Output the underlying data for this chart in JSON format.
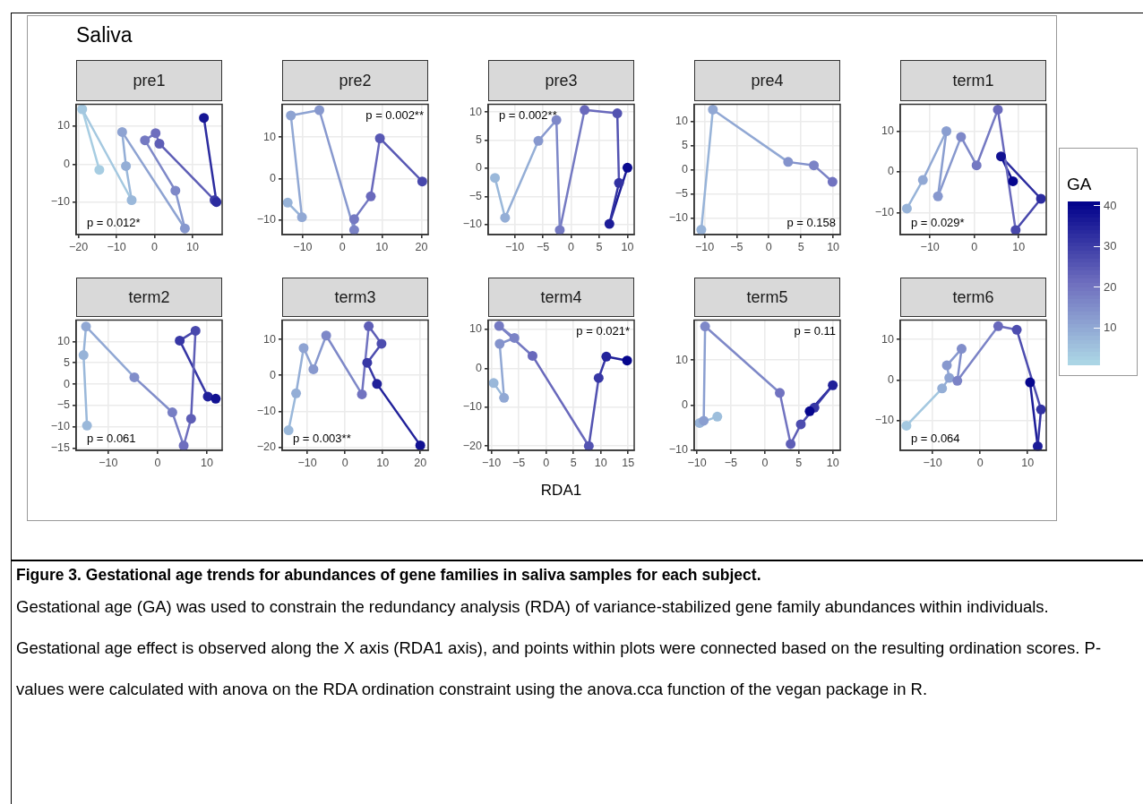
{
  "chart_data": [
    {
      "type": "line",
      "title": "pre1",
      "xlim": [
        -20.6,
        17.8
      ],
      "ylim": [
        -18.6,
        15.8
      ],
      "xticks": [
        -20,
        -10,
        0,
        10
      ],
      "yticks": [
        -10,
        0,
        10
      ],
      "grid": true,
      "annotations": [
        "p = 0.012*"
      ],
      "series": [
        {
          "type": "line",
          "x": [
            -14.5,
            -19
          ],
          "values": [
            -1.5,
            14.5
          ],
          "color": "#a7cde2"
        },
        {
          "type": "line",
          "x": [
            -19,
            -6
          ],
          "values": [
            14.5,
            -9.5
          ],
          "color": "#a4c8e0"
        },
        {
          "type": "line",
          "x": [
            -6,
            -7.5
          ],
          "values": [
            -9.5,
            -0.5
          ],
          "color": "#9ab8da"
        },
        {
          "type": "line",
          "x": [
            -7.5,
            -8.5
          ],
          "values": [
            -0.5,
            8.5
          ],
          "color": "#94aed6"
        },
        {
          "type": "line",
          "x": [
            -8.5,
            8
          ],
          "values": [
            8.5,
            -17
          ],
          "color": "#8ea3d2"
        },
        {
          "type": "line",
          "x": [
            8,
            5.5
          ],
          "values": [
            -17,
            -7
          ],
          "color": "#8798ce"
        },
        {
          "type": "line",
          "x": [
            5.5,
            -2.5
          ],
          "values": [
            -7,
            6.3
          ],
          "color": "#7e88c8"
        },
        {
          "type": "line",
          "x": [
            -2.5,
            0.3
          ],
          "values": [
            6.3,
            8.2
          ],
          "color": "#7479c2"
        },
        {
          "type": "line",
          "x": [
            0.3,
            1.3
          ],
          "values": [
            8.2,
            5.4
          ],
          "color": "#6e6ebe"
        },
        {
          "type": "line",
          "x": [
            1.3,
            15.8
          ],
          "values": [
            5.4,
            -9.5
          ],
          "color": "#5e5eb6"
        },
        {
          "type": "line",
          "x": [
            16.3,
            13
          ],
          "values": [
            -10,
            12.2
          ],
          "color": "#2c2c9f"
        },
        {
          "type": "scatter",
          "marker": "circle",
          "x": [
            -14.5,
            -19,
            -6,
            -7.5,
            -8.5,
            8,
            5.5,
            -2.5,
            0.3,
            1.3,
            15.8,
            16.3,
            13
          ],
          "values": [
            -1.5,
            14.5,
            -9.5,
            -0.5,
            8.5,
            -17,
            -7,
            6.3,
            8.2,
            5.4,
            -9.5,
            -10,
            12.2
          ],
          "colors": [
            "#a7cde2",
            "#a4c8e0",
            "#9ab8da",
            "#94aed6",
            "#8ea3d2",
            "#8798ce",
            "#7e88c8",
            "#7479c2",
            "#6e6ebe",
            "#5e5eb6",
            "#3d3da7",
            "#2c2c9f",
            "#161695"
          ]
        }
      ]
    },
    {
      "type": "line",
      "title": "pre2",
      "xlim": [
        -15.2,
        21.7
      ],
      "ylim": [
        -13.5,
        17.9
      ],
      "xticks": [
        -10,
        0,
        10,
        20
      ],
      "yticks": [
        -10,
        0,
        10
      ],
      "grid": true,
      "annotations": [
        "p = 0.002**"
      ],
      "series": [
        {
          "type": "line",
          "x": [
            -13.8,
            -10.2
          ],
          "values": [
            -5.8,
            -9.3
          ],
          "color": "#97b3d8"
        },
        {
          "type": "line",
          "x": [
            -10.2,
            -13
          ],
          "values": [
            -9.3,
            15.2
          ],
          "color": "#91a8d4"
        },
        {
          "type": "line",
          "x": [
            -13,
            -5.8
          ],
          "values": [
            15.2,
            16.5
          ],
          "color": "#8ea3d2"
        },
        {
          "type": "line",
          "x": [
            -5.8,
            3
          ],
          "values": [
            16.5,
            -12.4
          ],
          "color": "#8798ce"
        },
        {
          "type": "line",
          "x": [
            3,
            3
          ],
          "values": [
            -12.4,
            -9.8
          ],
          "color": "#7b83c6"
        },
        {
          "type": "line",
          "x": [
            3,
            7.2
          ],
          "values": [
            -9.8,
            -4.3
          ],
          "color": "#7479c2"
        },
        {
          "type": "line",
          "x": [
            7.2,
            9.5
          ],
          "values": [
            -4.3,
            9.7
          ],
          "color": "#6969bc"
        },
        {
          "type": "line",
          "x": [
            9.5,
            20.2
          ],
          "values": [
            9.7,
            -0.7
          ],
          "color": "#5858b4"
        },
        {
          "type": "scatter",
          "marker": "circle",
          "x": [
            -13.8,
            -10.2,
            -13,
            -5.8,
            3,
            3,
            7.2,
            9.5,
            20.2
          ],
          "values": [
            -5.8,
            -9.3,
            15.2,
            16.5,
            -12.4,
            -9.8,
            -4.3,
            9.7,
            -0.7
          ],
          "colors": [
            "#97b3d8",
            "#91a8d4",
            "#8ea3d2",
            "#8798ce",
            "#7b83c6",
            "#7479c2",
            "#6969bc",
            "#5858b4",
            "#4848ac"
          ]
        }
      ]
    },
    {
      "type": "line",
      "title": "pre3",
      "xlim": [
        -14.7,
        11.2
      ],
      "ylim": [
        -11.8,
        11.4
      ],
      "xticks": [
        -10,
        -5,
        0,
        5,
        10
      ],
      "yticks": [
        -10,
        -5,
        0,
        5,
        10
      ],
      "grid": true,
      "annotations": [
        "p = 0.002**"
      ],
      "series": [
        {
          "type": "line",
          "x": [
            -13.5,
            -11.7
          ],
          "values": [
            -1.7,
            -8.8
          ],
          "color": "#9ab8da"
        },
        {
          "type": "line",
          "x": [
            -11.7,
            -5.8
          ],
          "values": [
            -8.8,
            4.9
          ],
          "color": "#94aed6"
        },
        {
          "type": "line",
          "x": [
            -5.8,
            -2.6
          ],
          "values": [
            4.9,
            8.6
          ],
          "color": "#8798ce"
        },
        {
          "type": "line",
          "x": [
            -2.6,
            -2
          ],
          "values": [
            8.6,
            -11
          ],
          "color": "#7e88c8"
        },
        {
          "type": "line",
          "x": [
            -2,
            2.4
          ],
          "values": [
            -11,
            10.4
          ],
          "color": "#7479c2"
        },
        {
          "type": "line",
          "x": [
            2.4,
            8.2
          ],
          "values": [
            10.4,
            9.8
          ],
          "color": "#6969bc"
        },
        {
          "type": "line",
          "x": [
            8.2,
            8.5
          ],
          "values": [
            9.8,
            -2.6
          ],
          "color": "#5353b1"
        },
        {
          "type": "line",
          "x": [
            8.5,
            6.8
          ],
          "values": [
            -2.6,
            -9.9
          ],
          "color": "#3232a2"
        },
        {
          "type": "line",
          "x": [
            6.8,
            10
          ],
          "values": [
            -9.9,
            0.1
          ],
          "color": "#1c1c98"
        },
        {
          "type": "scatter",
          "marker": "circle",
          "x": [
            -13.5,
            -11.7,
            -5.8,
            -2.6,
            -2,
            2.4,
            8.2,
            8.5,
            6.8,
            10
          ],
          "values": [
            -1.7,
            -8.8,
            4.9,
            8.6,
            -11,
            10.4,
            9.8,
            -2.6,
            -9.9,
            0.1
          ],
          "colors": [
            "#9ab8da",
            "#94aed6",
            "#8798ce",
            "#7e88c8",
            "#7479c2",
            "#6969bc",
            "#5353b1",
            "#3232a2",
            "#1c1c98",
            "#0b0b90"
          ]
        }
      ]
    },
    {
      "type": "line",
      "title": "pre4",
      "xlim": [
        -11.6,
        11.1
      ],
      "ylim": [
        -13.4,
        13.5
      ],
      "xticks": [
        -10,
        -5,
        0,
        5,
        10
      ],
      "yticks": [
        -10,
        -5,
        0,
        5,
        10
      ],
      "grid": true,
      "annotations": [
        "p = 0.158"
      ],
      "series": [
        {
          "type": "line",
          "x": [
            -10.5,
            -8.7
          ],
          "values": [
            -12.4,
            12.4
          ],
          "color": "#97b3d8"
        },
        {
          "type": "line",
          "x": [
            -8.7,
            3
          ],
          "values": [
            12.4,
            1.6
          ],
          "color": "#91a8d4"
        },
        {
          "type": "line",
          "x": [
            3,
            7
          ],
          "values": [
            1.6,
            0.9
          ],
          "color": "#8493cc"
        },
        {
          "type": "line",
          "x": [
            7,
            9.9
          ],
          "values": [
            0.9,
            -2.5
          ],
          "color": "#7b83c6"
        },
        {
          "type": "scatter",
          "marker": "circle",
          "x": [
            -10.5,
            -8.7,
            3,
            7,
            9.9
          ],
          "values": [
            -12.4,
            12.4,
            1.6,
            0.9,
            -2.5
          ],
          "colors": [
            "#97b3d8",
            "#91a8d4",
            "#8493cc",
            "#7b83c6",
            "#7173c0"
          ]
        }
      ]
    },
    {
      "type": "line",
      "title": "term1",
      "clim": [
        1,
        41
      ],
      "cticks": [
        10,
        20,
        30,
        40
      ],
      "clabel": "GA",
      "xlim": [
        -16.7,
        16.2
      ],
      "ylim": [
        -15.4,
        16.6
      ],
      "xticks": [
        -10,
        0,
        10
      ],
      "yticks": [
        -10,
        0,
        10
      ],
      "grid": true,
      "annotations": [
        "p = 0.029*"
      ],
      "series": [
        {
          "type": "line",
          "x": [
            -15.2,
            -11.6
          ],
          "values": [
            -9,
            -2
          ],
          "color": "#97b3d8"
        },
        {
          "type": "line",
          "x": [
            -11.6,
            -6.3
          ],
          "values": [
            -2,
            10
          ],
          "color": "#91a8d4"
        },
        {
          "type": "line",
          "x": [
            -6.3,
            -8.2
          ],
          "values": [
            10,
            -6
          ],
          "color": "#8a9ed0"
        },
        {
          "type": "line",
          "x": [
            -8.2,
            -3
          ],
          "values": [
            -6,
            8.6
          ],
          "color": "#8798ce"
        },
        {
          "type": "line",
          "x": [
            -3,
            0.5
          ],
          "values": [
            8.6,
            1.6
          ],
          "color": "#7e88c8"
        },
        {
          "type": "line",
          "x": [
            0.5,
            5.3
          ],
          "values": [
            1.6,
            15.3
          ],
          "color": "#7479c2"
        },
        {
          "type": "line",
          "x": [
            5.3,
            9.3
          ],
          "values": [
            15.3,
            -14.3
          ],
          "color": "#6969bc"
        },
        {
          "type": "line",
          "x": [
            9.3,
            15
          ],
          "values": [
            -14.3,
            -6.6
          ],
          "color": "#4848ac"
        },
        {
          "type": "line",
          "x": [
            15,
            6
          ],
          "values": [
            -6.6,
            3.8
          ],
          "color": "#2c2c9f"
        },
        {
          "type": "line",
          "x": [
            6,
            8.7
          ],
          "values": [
            3.8,
            -2.3
          ],
          "color": "#111192"
        },
        {
          "type": "scatter",
          "marker": "circle",
          "x": [
            -15.2,
            -11.6,
            -6.3,
            -8.2,
            -3,
            0.5,
            5.3,
            9.3,
            15,
            6,
            8.7
          ],
          "values": [
            -9,
            -2,
            10,
            -6,
            8.6,
            1.6,
            15.3,
            -14.3,
            -6.6,
            3.8,
            -2.3
          ],
          "colors": [
            "#97b3d8",
            "#91a8d4",
            "#8a9ed0",
            "#8798ce",
            "#7e88c8",
            "#7479c2",
            "#6969bc",
            "#4848ac",
            "#2c2c9f",
            "#111192",
            "#06068d"
          ]
        }
      ]
    },
    {
      "type": "line",
      "title": "term2",
      "xlim": [
        -16.5,
        13.1
      ],
      "ylim": [
        -15.5,
        15
      ],
      "xticks": [
        -10,
        0,
        10
      ],
      "yticks": [
        -15,
        -10,
        -5,
        0,
        5,
        10
      ],
      "grid": true,
      "annotations": [
        "p = 0.061"
      ],
      "series": [
        {
          "type": "line",
          "x": [
            -14.3,
            -15
          ],
          "values": [
            -9.7,
            6.8
          ],
          "color": "#9ab8da"
        },
        {
          "type": "line",
          "x": [
            -15,
            -14.5
          ],
          "values": [
            6.8,
            13.5
          ],
          "color": "#97b3d8"
        },
        {
          "type": "line",
          "x": [
            -14.5,
            -4.7
          ],
          "values": [
            13.5,
            1.6
          ],
          "color": "#91a8d4"
        },
        {
          "type": "line",
          "x": [
            -4.7,
            3
          ],
          "values": [
            1.6,
            -6.6
          ],
          "color": "#818eca"
        },
        {
          "type": "line",
          "x": [
            3,
            5.3
          ],
          "values": [
            -6.6,
            -14.4
          ],
          "color": "#777ec4"
        },
        {
          "type": "line",
          "x": [
            5.3,
            6.8
          ],
          "values": [
            -14.4,
            -8.1
          ],
          "color": "#6e6ebe"
        },
        {
          "type": "line",
          "x": [
            6.8,
            7.7
          ],
          "values": [
            -8.1,
            12.5
          ],
          "color": "#5e5eb6"
        },
        {
          "type": "line",
          "x": [
            7.7,
            4.5
          ],
          "values": [
            12.5,
            10.2
          ],
          "color": "#4848ac"
        },
        {
          "type": "line",
          "x": [
            4.5,
            10.2
          ],
          "values": [
            10.2,
            -2.9
          ],
          "color": "#3737a5"
        },
        {
          "type": "scatter",
          "marker": "circle",
          "x": [
            -14.3,
            -15,
            -14.5,
            -4.7,
            3,
            5.3,
            6.8,
            7.7,
            4.5,
            10.2,
            11.8
          ],
          "values": [
            -9.7,
            6.8,
            13.5,
            1.6,
            -6.6,
            -14.4,
            -8.1,
            12.5,
            10.2,
            -2.9,
            -3.4
          ],
          "colors": [
            "#9ab8da",
            "#97b3d8",
            "#91a8d4",
            "#818eca",
            "#777ec4",
            "#6e6ebe",
            "#5e5eb6",
            "#4848ac",
            "#3737a5",
            "#21219a",
            "#111192"
          ]
        }
      ]
    },
    {
      "type": "line",
      "title": "term3",
      "xlim": [
        -16.7,
        22.1
      ],
      "ylim": [
        -20.9,
        15.4
      ],
      "xticks": [
        -10,
        0,
        10,
        20
      ],
      "yticks": [
        -20,
        -10,
        0,
        10
      ],
      "grid": true,
      "annotations": [
        "p = 0.003**"
      ],
      "series": [
        {
          "type": "line",
          "x": [
            -15,
            -13
          ],
          "values": [
            -15.3,
            -5
          ],
          "color": "#9ab8da"
        },
        {
          "type": "line",
          "x": [
            -13,
            -11
          ],
          "values": [
            -5,
            7.6
          ],
          "color": "#94aed6"
        },
        {
          "type": "line",
          "x": [
            -11,
            -8.4
          ],
          "values": [
            7.6,
            1.7
          ],
          "color": "#8ea3d2"
        },
        {
          "type": "line",
          "x": [
            -8.4,
            -5
          ],
          "values": [
            1.7,
            11.1
          ],
          "color": "#8798ce"
        },
        {
          "type": "line",
          "x": [
            -5,
            4.5
          ],
          "values": [
            11.1,
            -5.3
          ],
          "color": "#7e88c8"
        },
        {
          "type": "line",
          "x": [
            4.5,
            6.3
          ],
          "values": [
            -5.3,
            13.7
          ],
          "color": "#7173c0"
        },
        {
          "type": "line",
          "x": [
            6.3,
            9.7
          ],
          "values": [
            13.7,
            8.8
          ],
          "color": "#5e5eb6"
        },
        {
          "type": "line",
          "x": [
            9.7,
            5.9
          ],
          "values": [
            8.8,
            3.5
          ],
          "color": "#4d4daf"
        },
        {
          "type": "line",
          "x": [
            5.9,
            8.5
          ],
          "values": [
            3.5,
            -2.4
          ],
          "color": "#3737a5"
        },
        {
          "type": "line",
          "x": [
            8.5,
            20
          ],
          "values": [
            -2.4,
            -19.5
          ],
          "color": "#21219a"
        },
        {
          "type": "scatter",
          "marker": "circle",
          "x": [
            -15,
            -13,
            -11,
            -8.4,
            -5,
            4.5,
            6.3,
            9.7,
            5.9,
            8.5,
            20
          ],
          "values": [
            -15.3,
            -5,
            7.6,
            1.7,
            11.1,
            -5.3,
            13.7,
            8.8,
            3.5,
            -2.4,
            -19.5
          ],
          "colors": [
            "#9ab8da",
            "#94aed6",
            "#8ea3d2",
            "#8798ce",
            "#7e88c8",
            "#7173c0",
            "#5e5eb6",
            "#4d4daf",
            "#3737a5",
            "#21219a",
            "#111192"
          ]
        }
      ]
    },
    {
      "type": "line",
      "title": "term4",
      "xlabel": "RDA1",
      "xlim": [
        -10.6,
        16.1
      ],
      "ylim": [
        -21.1,
        12.4
      ],
      "xticks": [
        -10,
        -5,
        0,
        5,
        10,
        15
      ],
      "yticks": [
        -20,
        -10,
        0,
        10
      ],
      "grid": true,
      "annotations": [
        "p = 0.021*"
      ],
      "series": [
        {
          "type": "line",
          "x": [
            -9.6,
            -7.7
          ],
          "values": [
            -3.8,
            -7.6
          ],
          "color": "#9ab8da"
        },
        {
          "type": "line",
          "x": [
            -7.7,
            -8.5
          ],
          "values": [
            -7.6,
            6.3
          ],
          "color": "#91a8d4"
        },
        {
          "type": "line",
          "x": [
            -8.5,
            -5.8
          ],
          "values": [
            6.3,
            7.8
          ],
          "color": "#8493cc"
        },
        {
          "type": "line",
          "x": [
            -5.8,
            -8.6
          ],
          "values": [
            7.8,
            10.9
          ],
          "color": "#7b83c6"
        },
        {
          "type": "line",
          "x": [
            -8.6,
            -2.5
          ],
          "values": [
            10.9,
            3.2
          ],
          "color": "#7479c2"
        },
        {
          "type": "line",
          "x": [
            -2.5,
            7.8
          ],
          "values": [
            3.2,
            -20
          ],
          "color": "#6969bc"
        },
        {
          "type": "line",
          "x": [
            7.8,
            9.6
          ],
          "values": [
            -20,
            -2.5
          ],
          "color": "#5353b1"
        },
        {
          "type": "line",
          "x": [
            9.6,
            11
          ],
          "values": [
            -2.5,
            3
          ],
          "color": "#3737a5"
        },
        {
          "type": "line",
          "x": [
            11,
            14.8
          ],
          "values": [
            3,
            2
          ],
          "color": "#21219a"
        },
        {
          "type": "scatter",
          "marker": "circle",
          "x": [
            -9.6,
            -7.7,
            -8.5,
            -5.8,
            -8.6,
            -2.5,
            7.8,
            9.6,
            11,
            14.8
          ],
          "values": [
            -3.8,
            -7.6,
            6.3,
            7.8,
            10.9,
            3.2,
            -20,
            -2.5,
            3,
            2
          ],
          "colors": [
            "#9ab8da",
            "#91a8d4",
            "#8493cc",
            "#7b83c6",
            "#7479c2",
            "#6969bc",
            "#5353b1",
            "#3737a5",
            "#21219a",
            "#06068d"
          ]
        }
      ]
    },
    {
      "type": "line",
      "title": "term5",
      "xlim": [
        -10.4,
        11.1
      ],
      "ylim": [
        -10.1,
        18.9
      ],
      "xticks": [
        -10,
        -5,
        0,
        5,
        10
      ],
      "yticks": [
        -10,
        0,
        10
      ],
      "grid": true,
      "annotations": [
        "p = 0.11"
      ],
      "series": [
        {
          "type": "line",
          "x": [
            -7,
            -9.6
          ],
          "values": [
            -2.6,
            -4
          ],
          "color": "#9dbedc"
        },
        {
          "type": "line",
          "x": [
            -9,
            -8.8
          ],
          "values": [
            -3.5,
            17.5
          ],
          "color": "#8a9ed0"
        },
        {
          "type": "line",
          "x": [
            -8.8,
            2.2
          ],
          "values": [
            17.5,
            2.7
          ],
          "color": "#7e88c8"
        },
        {
          "type": "line",
          "x": [
            2.2,
            3.8
          ],
          "values": [
            2.7,
            -8.7
          ],
          "color": "#7173c0"
        },
        {
          "type": "line",
          "x": [
            3.8,
            5.3
          ],
          "values": [
            -8.7,
            -4.3
          ],
          "color": "#5e5eb6"
        },
        {
          "type": "line",
          "x": [
            5.3,
            7.3
          ],
          "values": [
            -4.3,
            -0.6
          ],
          "color": "#4d4daf"
        },
        {
          "type": "line",
          "x": [
            7.3,
            10
          ],
          "values": [
            -0.6,
            4.4
          ],
          "color": "#3737a5"
        },
        {
          "type": "line",
          "x": [
            10,
            6.6
          ],
          "values": [
            4.4,
            -1.4
          ],
          "color": "#21219a"
        },
        {
          "type": "scatter",
          "marker": "circle",
          "x": [
            -7,
            -9.6,
            -9,
            -8.8,
            2.2,
            3.8,
            5.3,
            7.3,
            10,
            6.6
          ],
          "values": [
            -2.6,
            -4,
            -3.5,
            17.5,
            2.7,
            -8.7,
            -4.3,
            -0.6,
            4.4,
            -1.4
          ],
          "colors": [
            "#9dbedc",
            "#97b3d8",
            "#8a9ed0",
            "#7e88c8",
            "#7173c0",
            "#5e5eb6",
            "#4d4daf",
            "#3737a5",
            "#21219a",
            "#06068d"
          ]
        }
      ]
    },
    {
      "type": "line",
      "title": "term6",
      "xlim": [
        -16.8,
        13.9
      ],
      "ylim": [
        -17.4,
        14.8
      ],
      "xticks": [
        -10,
        0,
        10
      ],
      "yticks": [
        -10,
        0,
        10
      ],
      "grid": true,
      "annotations": [
        "p = 0.064"
      ],
      "series": [
        {
          "type": "line",
          "x": [
            -15.5,
            -8
          ],
          "values": [
            -11.3,
            -2.1
          ],
          "color": "#a4c8e0"
        },
        {
          "type": "line",
          "x": [
            -8,
            -6.5
          ],
          "values": [
            -2.1,
            0.5
          ],
          "color": "#94aed6"
        },
        {
          "type": "line",
          "x": [
            -6.5,
            -7
          ],
          "values": [
            0.5,
            3.6
          ],
          "color": "#8ea3d2"
        },
        {
          "type": "line",
          "x": [
            -7,
            -3.9
          ],
          "values": [
            3.6,
            7.7
          ],
          "color": "#8798ce"
        },
        {
          "type": "line",
          "x": [
            -3.9,
            -4.8
          ],
          "values": [
            7.7,
            -0.2
          ],
          "color": "#818eca"
        },
        {
          "type": "line",
          "x": [
            -4.8,
            3.8
          ],
          "values": [
            -0.2,
            13.3
          ],
          "color": "#7b83c6"
        },
        {
          "type": "line",
          "x": [
            3.8,
            7.7
          ],
          "values": [
            13.3,
            12.4
          ],
          "color": "#6969bc"
        },
        {
          "type": "line",
          "x": [
            7.7,
            12.8
          ],
          "values": [
            12.4,
            -7.3
          ],
          "color": "#4d4daf"
        },
        {
          "type": "line",
          "x": [
            12.8,
            12.1
          ],
          "values": [
            -7.3,
            -16.4
          ],
          "color": "#3232a2"
        },
        {
          "type": "line",
          "x": [
            12.1,
            10.5
          ],
          "values": [
            -16.4,
            -0.6
          ],
          "color": "#1c1c98"
        },
        {
          "type": "scatter",
          "marker": "circle",
          "x": [
            -15.5,
            -8,
            -6.5,
            -7,
            -3.9,
            -4.8,
            3.8,
            7.7,
            12.8,
            12.1,
            10.5
          ],
          "values": [
            -11.3,
            -2.1,
            0.5,
            3.6,
            7.7,
            -0.2,
            13.3,
            12.4,
            -7.3,
            -16.4,
            -0.6
          ],
          "colors": [
            "#a4c8e0",
            "#94aed6",
            "#8ea3d2",
            "#8798ce",
            "#818eca",
            "#7b83c6",
            "#6969bc",
            "#4d4daf",
            "#3232a2",
            "#1c1c98",
            "#06068d"
          ]
        }
      ]
    },
    {
      "type": "other",
      "title": "Saliva"
    },
    {
      "type": "other",
      "title": "Figure 3. Gestational age trends for abundances of gene families in saliva samples for each subject.",
      "annotations": [
        "Gestational age (GA) was used to constrain the redundancy analysis (RDA) of variance-stabilized gene family abundances within individuals. Gestational age effect is observed along the X axis (RDA1 axis), and points within plots were connected based on the resulting ordination scores. P-values were calculated with anova on the RDA ordination constraint using the anova.cca function of the vegan package in R."
      ]
    }
  ]
}
